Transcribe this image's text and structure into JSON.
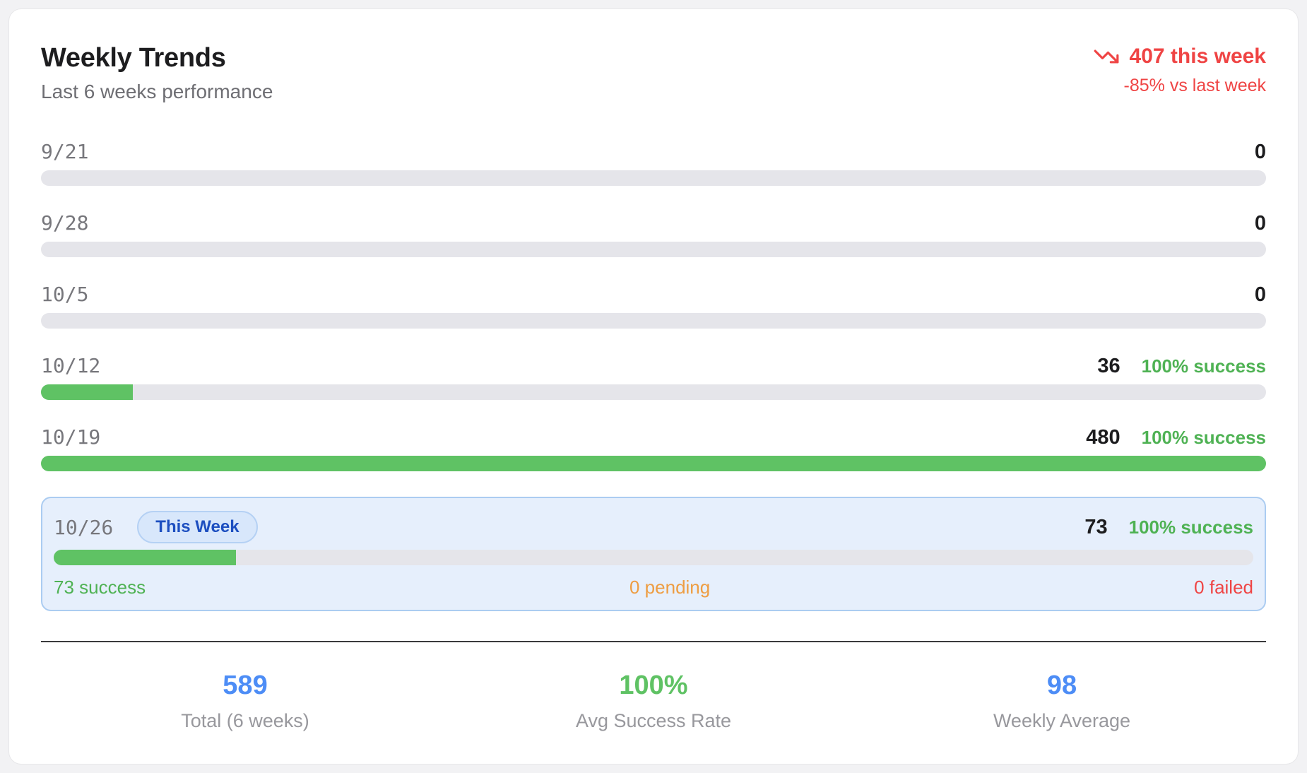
{
  "card": {
    "title": "Weekly Trends",
    "subtitle": "Last 6 weeks performance",
    "trend": {
      "icon": "trending-down-icon",
      "headline": "407 this week",
      "comparison": "-85% vs last week"
    },
    "weeks": [
      {
        "date": "9/21",
        "count": "0",
        "percent": 0
      },
      {
        "date": "9/28",
        "count": "0",
        "percent": 0
      },
      {
        "date": "10/5",
        "count": "0",
        "percent": 0
      },
      {
        "date": "10/12",
        "count": "36",
        "percent": 7.5,
        "success": "100% success"
      },
      {
        "date": "10/19",
        "count": "480",
        "percent": 100,
        "success": "100% success"
      },
      {
        "date": "10/26",
        "count": "73",
        "percent": 15.2,
        "success": "100% success",
        "badge": "This Week",
        "breakdown": {
          "success": "73 success",
          "pending": "0 pending",
          "failed": "0 failed"
        }
      }
    ],
    "summary": [
      {
        "value": "589",
        "label": "Total (6 weeks)"
      },
      {
        "value": "100%",
        "label": "Avg Success Rate"
      },
      {
        "value": "98",
        "label": "Weekly Average"
      }
    ]
  },
  "colors": {
    "negative_red": "#ef4444",
    "success_green": "#4fb254",
    "pending_orange": "#ee9d42",
    "bar_fill": "#5fc264",
    "bar_track": "#e5e5ea",
    "highlight_bg": "#e6effc",
    "highlight_border": "#abccf1",
    "badge_bg": "#d8e7fb",
    "badge_text": "#1d4fc0",
    "stat_blue": "#4d8df6"
  },
  "chart_data": {
    "type": "bar",
    "orientation": "horizontal",
    "title": "Weekly Trends",
    "subtitle": "Last 6 weeks performance",
    "categories": [
      "9/21",
      "9/28",
      "10/5",
      "10/12",
      "10/19",
      "10/26"
    ],
    "values": [
      0,
      0,
      0,
      36,
      480,
      73
    ],
    "success_rate_labels": [
      "",
      "",
      "",
      "100% success",
      "100% success",
      "100% success"
    ],
    "xlim": [
      0,
      480
    ],
    "grid": false,
    "this_week": {
      "date": "10/26",
      "total": 73,
      "success": 73,
      "pending": 0,
      "failed": 0
    },
    "trend": {
      "headline": "407 this week",
      "comparison": "-85% vs last week",
      "direction": "down"
    },
    "summary": {
      "total_6_weeks": 589,
      "avg_success_rate": "100%",
      "weekly_average": 98
    }
  }
}
